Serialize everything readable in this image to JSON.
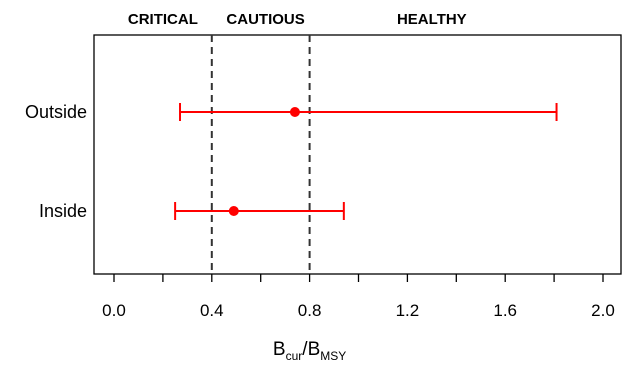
{
  "chart_data": {
    "type": "errorbar",
    "categories": [
      "Outside",
      "Inside"
    ],
    "series": [
      {
        "points": [
          {
            "category": "Outside",
            "estimate": 0.74,
            "lower": 0.27,
            "upper": 1.81
          },
          {
            "category": "Inside",
            "estimate": 0.49,
            "lower": 0.25,
            "upper": 0.94
          }
        ],
        "color": "#ff0000"
      }
    ],
    "xlabel": {
      "main": "B",
      "main_sub": "cur",
      "sep": "/",
      "denom": "B",
      "denom_sub": "MSY"
    },
    "xlim": [
      -0.08,
      2.0
    ],
    "xticks": [
      "0.0",
      "0.4",
      "0.8",
      "1.2",
      "1.6",
      "2.0"
    ],
    "xtick_values": [
      0.0,
      0.4,
      0.8,
      1.2,
      1.6,
      2.0
    ],
    "xminor_values": [
      0.2,
      0.6,
      1.0,
      1.4,
      1.8
    ],
    "reference_lines": [
      {
        "value": 0.4,
        "style": "dashed",
        "color": "#333333"
      },
      {
        "value": 0.8,
        "style": "dashed",
        "color": "#333333"
      }
    ],
    "zones": [
      {
        "label": "CRITICAL",
        "anchor": 0.2
      },
      {
        "label": "CAUTIOUS",
        "anchor": 0.62
      },
      {
        "label": "HEALTHY",
        "anchor": 1.3
      }
    ],
    "grid": false,
    "legend": "none"
  }
}
